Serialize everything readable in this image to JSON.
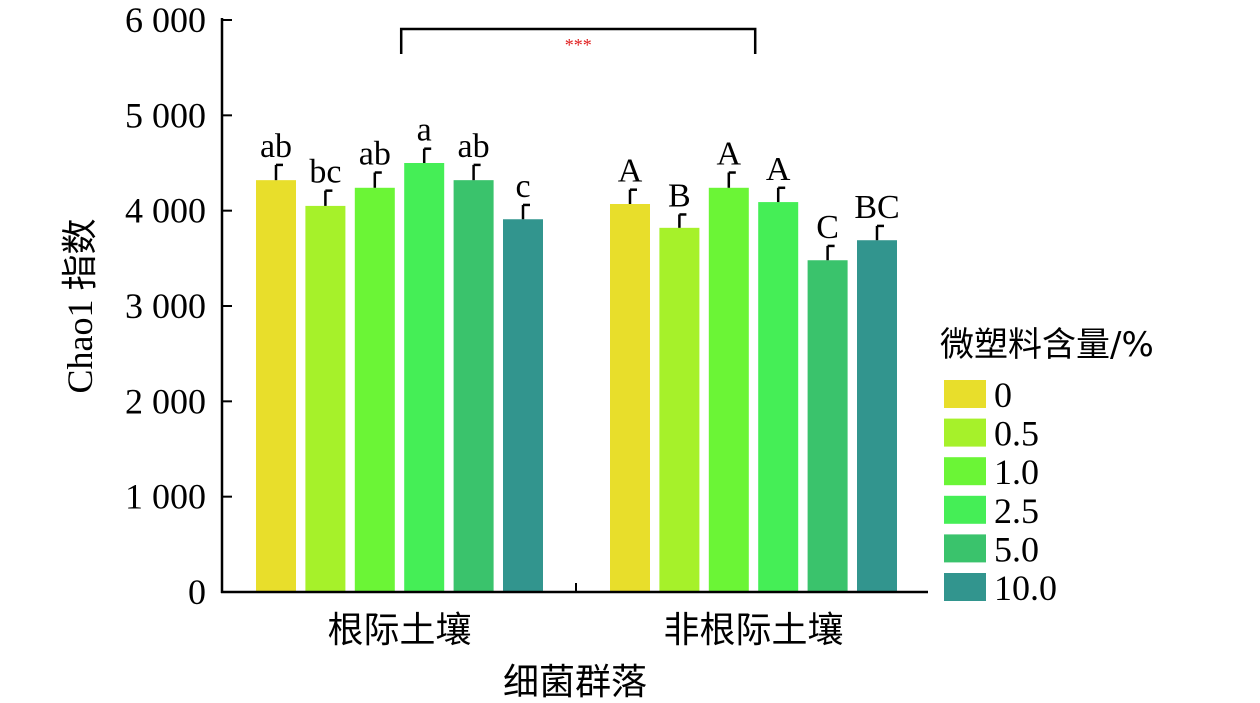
{
  "chart_data": {
    "type": "bar",
    "xlabel": "细菌群落",
    "ylabel": "Chao1 指数",
    "ylim": [
      0,
      6000
    ],
    "yticks": [
      0,
      1000,
      2000,
      3000,
      4000,
      5000,
      6000
    ],
    "ytick_labels": [
      "0",
      "1 000",
      "2 000",
      "3 000",
      "4 000",
      "5 000",
      "6 000"
    ],
    "categories": [
      "根际土壤",
      "非根际土壤"
    ],
    "legend": {
      "title": "微塑料含量/%",
      "placement": "right",
      "entries": [
        "0",
        "0.5",
        "1.0",
        "2.5",
        "5.0",
        "10.0"
      ]
    },
    "colors": [
      "#e8de2b",
      "#a6f12a",
      "#6bf536",
      "#45ee56",
      "#3ac36c",
      "#32958e"
    ],
    "series": [
      {
        "name": "0",
        "values": [
          4320,
          4070
        ],
        "errors": [
          160,
          150
        ],
        "letters": [
          "ab",
          "A"
        ]
      },
      {
        "name": "0.5",
        "values": [
          4050,
          3820
        ],
        "errors": [
          160,
          140
        ],
        "letters": [
          "bc",
          "B"
        ]
      },
      {
        "name": "1.0",
        "values": [
          4240,
          4240
        ],
        "errors": [
          160,
          160
        ],
        "letters": [
          "ab",
          "A"
        ]
      },
      {
        "name": "2.5",
        "values": [
          4500,
          4090
        ],
        "errors": [
          150,
          150
        ],
        "letters": [
          "a",
          "A"
        ]
      },
      {
        "name": "5.0",
        "values": [
          4320,
          3480
        ],
        "errors": [
          160,
          150
        ],
        "letters": [
          "ab",
          "C"
        ]
      },
      {
        "name": "10.0",
        "values": [
          3910,
          3690
        ],
        "errors": [
          150,
          150
        ],
        "letters": [
          "c",
          "BC"
        ]
      }
    ],
    "significance": {
      "label": "***",
      "color": "#e02020",
      "between": [
        "根际土壤",
        "非根际土壤"
      ],
      "bracket_value": 5800
    }
  }
}
